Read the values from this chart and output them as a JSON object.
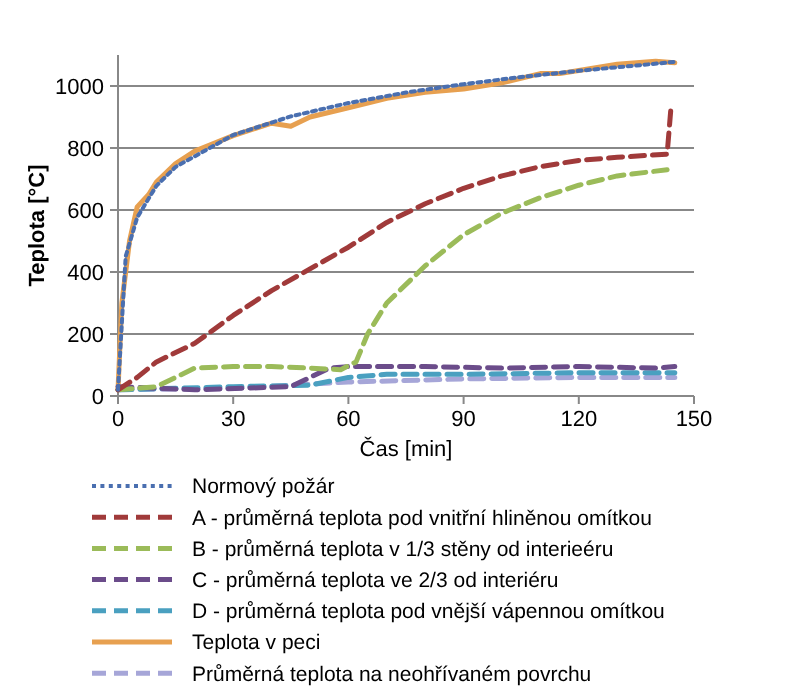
{
  "chart_data": {
    "type": "line",
    "xlabel": "Čas [min]",
    "ylabel": "Teplota [°C]",
    "xlim": [
      0,
      150
    ],
    "xticks": [
      0,
      30,
      60,
      90,
      120,
      150
    ],
    "ylim": [
      0,
      1100
    ],
    "yticks": [
      0,
      200,
      400,
      600,
      800,
      1000
    ],
    "grid": "y",
    "legend": "bottom",
    "marker": "none",
    "series": [
      {
        "name": "Normový požár",
        "color": "#4a6fb0",
        "line_style": "dotted",
        "x": [
          0,
          2,
          5,
          10,
          15,
          30,
          45,
          60,
          75,
          90,
          105,
          120,
          135,
          145
        ],
        "values": [
          20,
          450,
          576,
          678,
          739,
          842,
          902,
          945,
          979,
          1006,
          1029,
          1049,
          1066,
          1078
        ]
      },
      {
        "name": "A - průměrná teplota pod vnitřní hliněnou omítkou",
        "color": "#a03a3a",
        "line_style": "dashed",
        "x": [
          0,
          5,
          10,
          20,
          30,
          40,
          50,
          60,
          70,
          80,
          90,
          100,
          110,
          120,
          130,
          143,
          144
        ],
        "values": [
          20,
          60,
          110,
          170,
          260,
          340,
          410,
          480,
          560,
          620,
          670,
          710,
          740,
          760,
          770,
          780,
          930
        ]
      },
      {
        "name": "B - průměrná teplota v 1/3 stěny od interieéru",
        "color": "#9bbb59",
        "line_style": "dashed",
        "x": [
          0,
          10,
          15,
          20,
          30,
          40,
          50,
          58,
          62,
          65,
          70,
          80,
          90,
          100,
          110,
          120,
          130,
          143
        ],
        "values": [
          20,
          30,
          60,
          90,
          95,
          95,
          90,
          85,
          110,
          200,
          300,
          420,
          520,
          590,
          640,
          680,
          710,
          730
        ]
      },
      {
        "name": "C - průměrná teplota ve 2/3 od interiéru",
        "color": "#6b4c8a",
        "line_style": "dashed",
        "x": [
          0,
          20,
          45,
          55,
          60,
          80,
          100,
          120,
          140,
          145
        ],
        "values": [
          30,
          20,
          30,
          90,
          95,
          95,
          90,
          95,
          90,
          95
        ]
      },
      {
        "name": "D - průměrná teplota pod vnější vápennou omítkou",
        "color": "#4aa0c0",
        "line_style": "dashed",
        "x": [
          0,
          30,
          50,
          60,
          70,
          90,
          120,
          145
        ],
        "values": [
          20,
          30,
          35,
          60,
          70,
          70,
          75,
          75
        ]
      },
      {
        "name": "Teplota v peci",
        "color": "#e7a050",
        "line_style": "solid",
        "x": [
          0,
          1,
          3,
          5,
          8,
          10,
          15,
          20,
          30,
          40,
          45,
          50,
          60,
          70,
          80,
          90,
          100,
          110,
          115,
          120,
          130,
          140,
          145
        ],
        "values": [
          20,
          300,
          500,
          610,
          650,
          690,
          750,
          790,
          840,
          880,
          870,
          900,
          930,
          960,
          980,
          990,
          1010,
          1040,
          1040,
          1050,
          1070,
          1080,
          1075
        ]
      },
      {
        "name": "Průměrná teplota na neohřívaném povrchu",
        "color": "#a6a6d8",
        "line_style": "dashed",
        "x": [
          0,
          30,
          60,
          90,
          120,
          145
        ],
        "values": [
          20,
          25,
          45,
          55,
          60,
          60
        ]
      }
    ]
  }
}
